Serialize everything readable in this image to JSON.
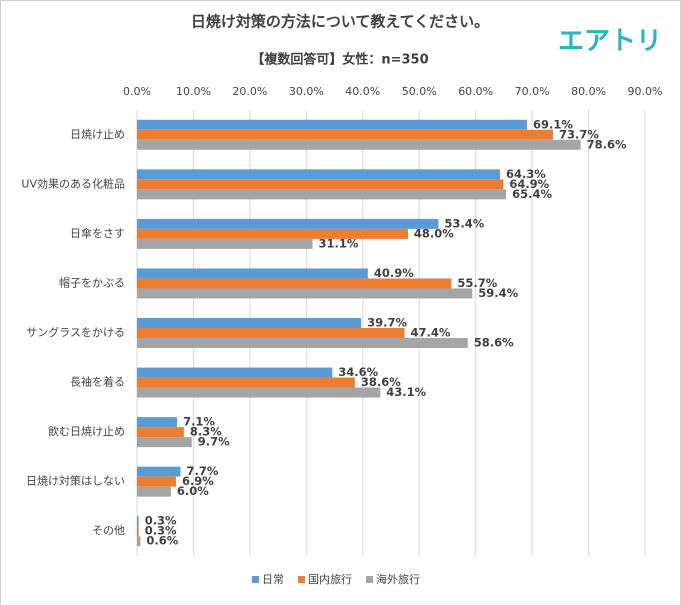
{
  "chart_data": {
    "type": "bar",
    "orientation": "horizontal",
    "title": "日焼け対策の方法について教えてください。",
    "subtitle": "【複数回答可】女性：n=350",
    "logo": "エアトリ",
    "categories": [
      "日焼け止め",
      "UV効果のある化粧品",
      "日傘をさす",
      "帽子をかぶる",
      "サングラスをかける",
      "長袖を着る",
      "飲む日焼け止め",
      "日焼け対策はしない",
      "その他"
    ],
    "series": [
      {
        "name": "日常",
        "color": "#5b9bd5",
        "values": [
          69.1,
          64.3,
          53.4,
          40.9,
          39.7,
          34.6,
          7.1,
          7.7,
          0.3
        ],
        "value_labels": [
          "69.1%",
          "64.3%",
          "53.4%",
          "40.9%",
          "39.7%",
          "34.6%",
          "7.1%",
          "7.7%",
          "0.3%"
        ]
      },
      {
        "name": "国内旅行",
        "color": "#ed7d31",
        "values": [
          73.7,
          64.9,
          48.0,
          55.7,
          47.4,
          38.6,
          8.3,
          6.9,
          0.3
        ],
        "value_labels": [
          "73.7%",
          "64.9%",
          "48.0%",
          "55.7%",
          "47.4%",
          "38.6%",
          "8.3%",
          "6.9%",
          "0.3%"
        ]
      },
      {
        "name": "海外旅行",
        "color": "#a5a5a5",
        "values": [
          78.6,
          65.4,
          31.1,
          59.4,
          58.6,
          43.1,
          9.7,
          6.0,
          0.6
        ],
        "value_labels": [
          "78.6%",
          "65.4%",
          "31.1%",
          "59.4%",
          "58.6%",
          "43.1%",
          "9.7%",
          "6.0%",
          "0.6%"
        ]
      }
    ],
    "xlim": [
      0,
      90
    ],
    "xticks": [
      {
        "value": 0,
        "label": "0.0%"
      },
      {
        "value": 10,
        "label": "10.0%"
      },
      {
        "value": 20,
        "label": "20.0%"
      },
      {
        "value": 30,
        "label": "30.0%"
      },
      {
        "value": 40,
        "label": "40.0%"
      },
      {
        "value": 50,
        "label": "50.0%"
      },
      {
        "value": 60,
        "label": "60.0%"
      },
      {
        "value": 70,
        "label": "70.0%"
      },
      {
        "value": 80,
        "label": "80.0%"
      },
      {
        "value": 90,
        "label": "90.0%"
      }
    ],
    "grid": true,
    "legend": "bottom"
  }
}
